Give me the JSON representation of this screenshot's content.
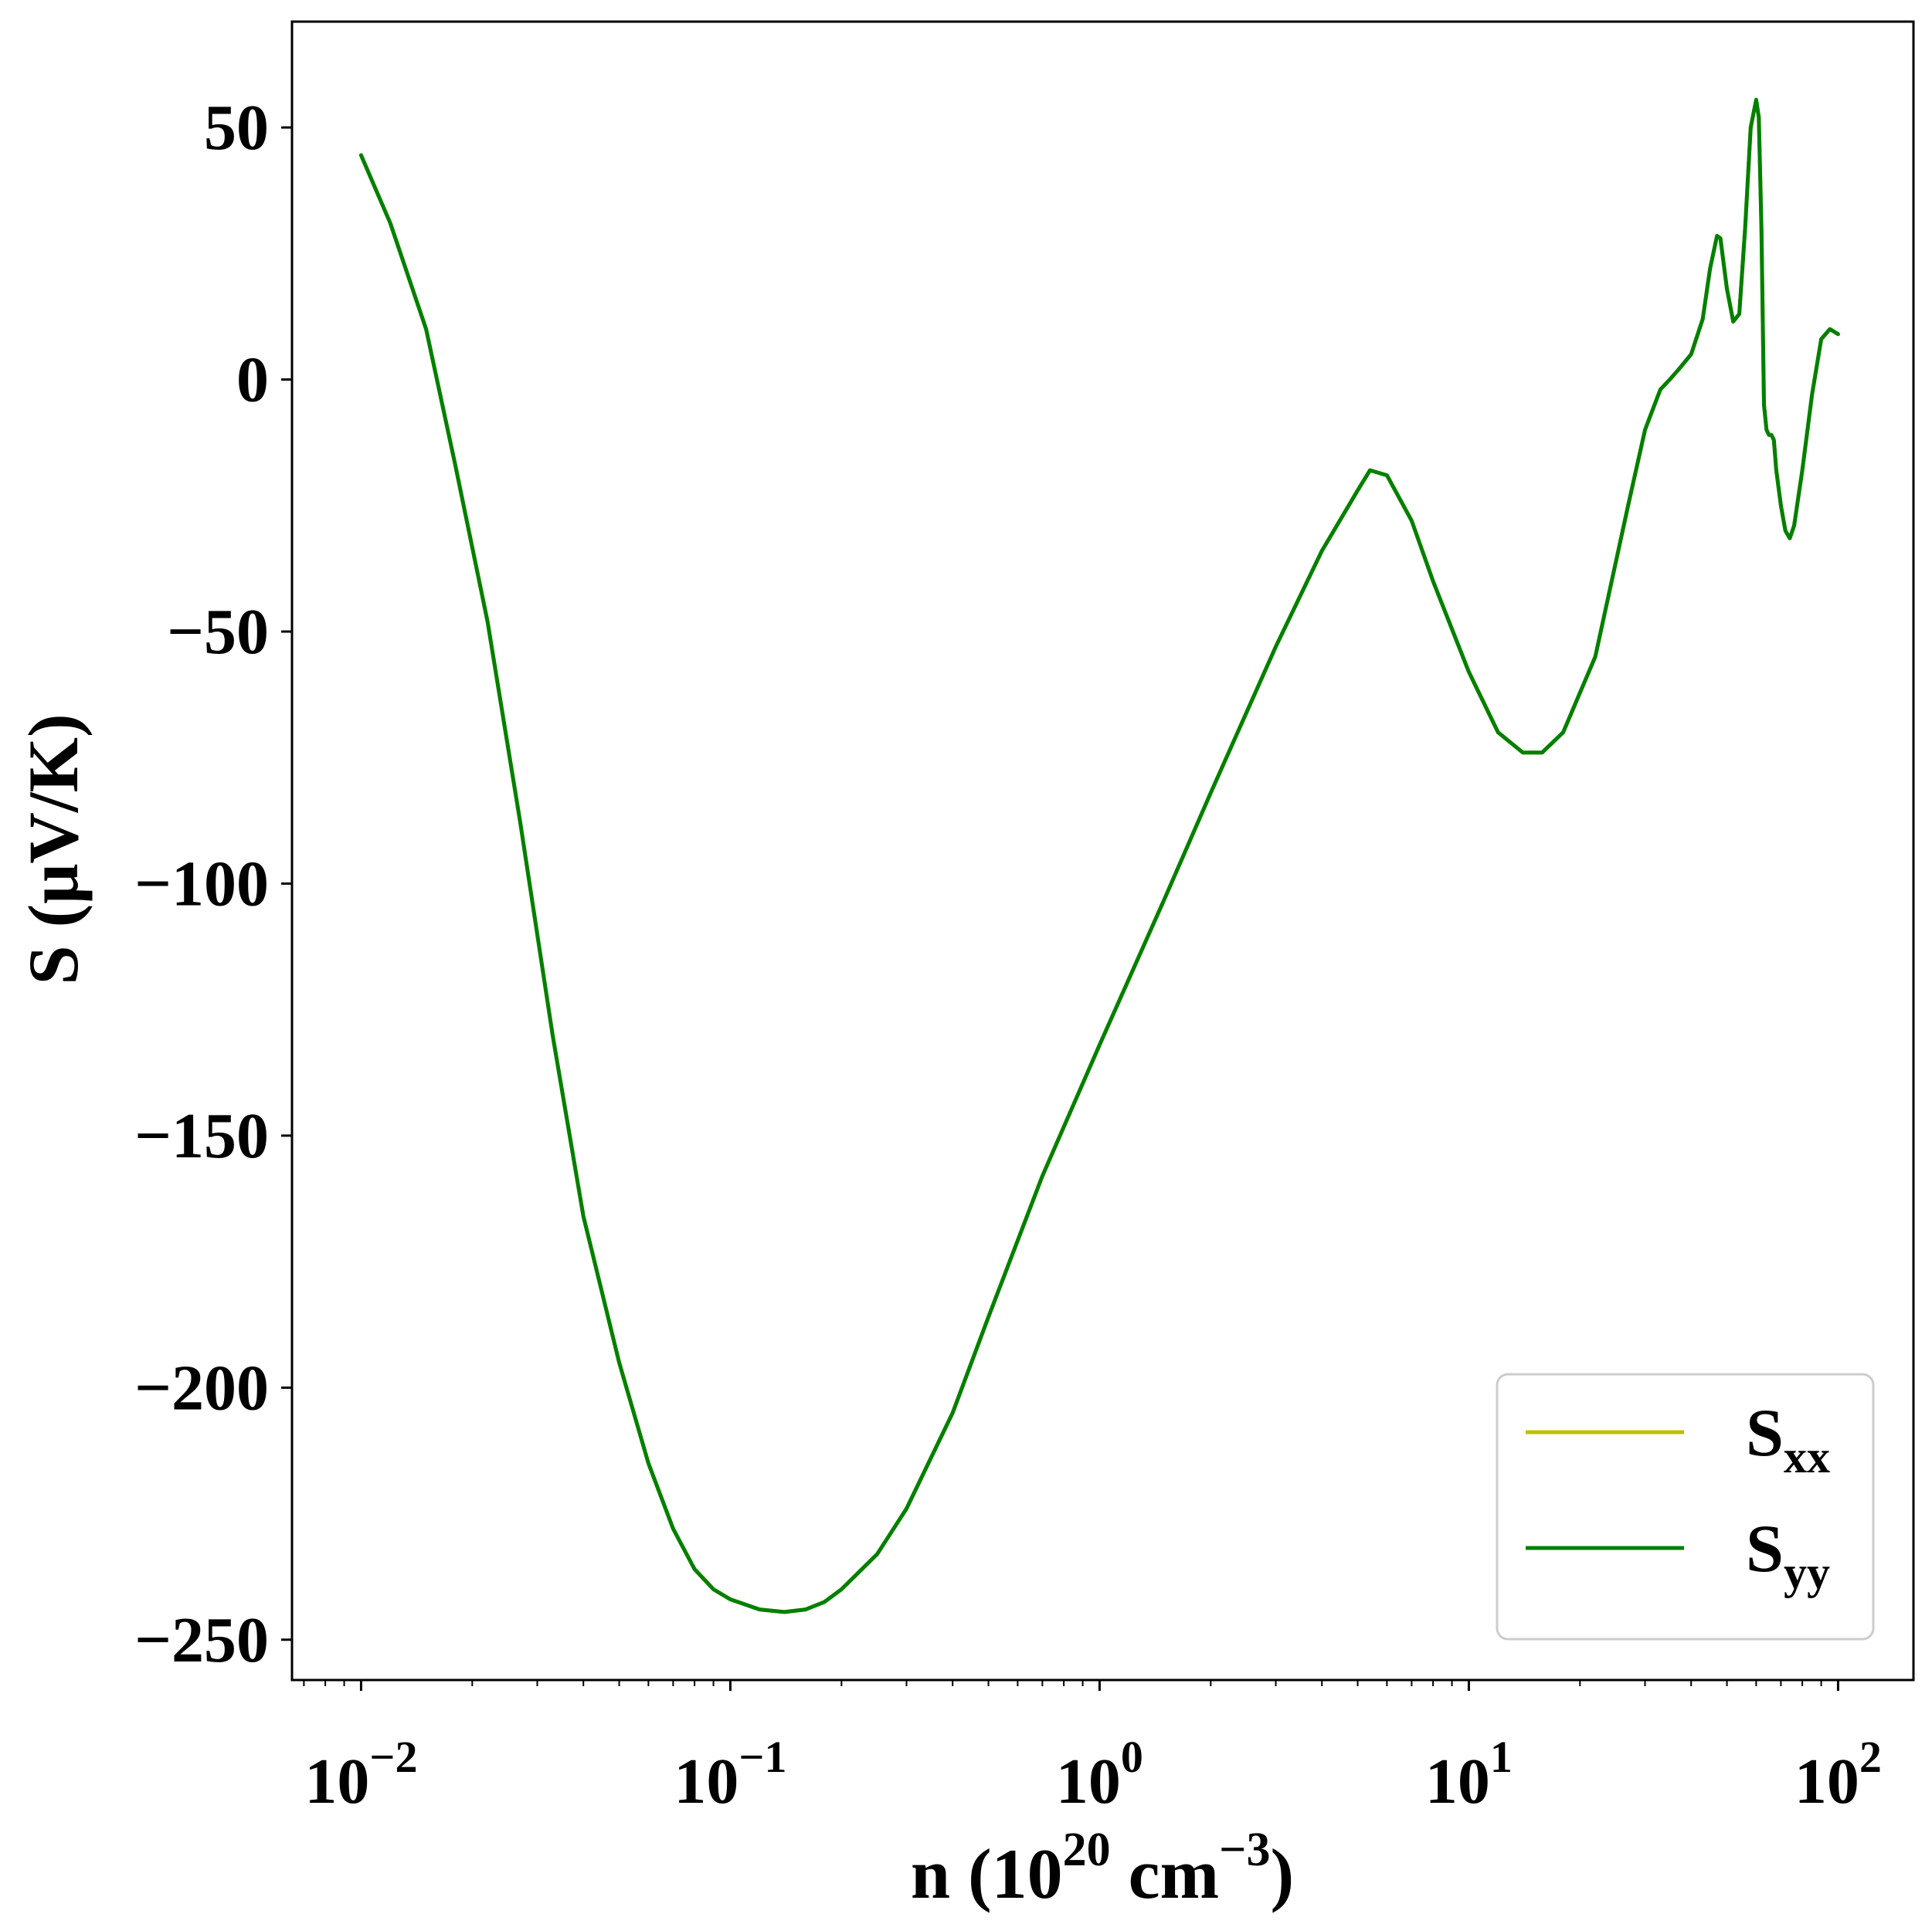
{
  "chart_data": {
    "type": "line",
    "xscale": "log",
    "xlim": [
      0.0065,
      160
    ],
    "ylim": [
      -258,
      71
    ],
    "xlabel": {
      "pre": "n (10",
      "sup1": "20",
      "mid": " cm",
      "sup2": "−3",
      "post": ")"
    },
    "ylabel": "S (μV/K)",
    "xticks": [
      {
        "value": 0.01,
        "base": "10",
        "exp": "−2"
      },
      {
        "value": 0.1,
        "base": "10",
        "exp": "−1"
      },
      {
        "value": 1,
        "base": "10",
        "exp": "0"
      },
      {
        "value": 10,
        "base": "10",
        "exp": "1"
      },
      {
        "value": 100,
        "base": "10",
        "exp": "2"
      }
    ],
    "yticks": [
      {
        "value": 50,
        "label": "50"
      },
      {
        "value": 0,
        "label": "0"
      },
      {
        "value": -50,
        "label": "−50"
      },
      {
        "value": -100,
        "label": "−100"
      },
      {
        "value": -150,
        "label": "−150"
      },
      {
        "value": -200,
        "label": "−200"
      },
      {
        "value": -250,
        "label": "−250"
      }
    ],
    "grid": false,
    "legend": {
      "position": "lower-right",
      "entries": [
        {
          "base": "S",
          "sub": "xx",
          "color": "#bfbf00"
        },
        {
          "base": "S",
          "sub": "yy",
          "color": "#008000"
        }
      ]
    },
    "series": [
      {
        "name": "Sxx",
        "color": "#bfbf00",
        "x": [
          0.01,
          0.012,
          0.015,
          0.018,
          0.022,
          0.027,
          0.033,
          0.04,
          0.05,
          0.06,
          0.07,
          0.08,
          0.09,
          0.1,
          0.12,
          0.14,
          0.16,
          0.18,
          0.2,
          0.25,
          0.3,
          0.4,
          0.5,
          0.7,
          1.0,
          1.5,
          2.0,
          3.0,
          4.0,
          5.0,
          5.4,
          6.0,
          7.0,
          8.0,
          10.0,
          12.0,
          14.0,
          15.8,
          18.0,
          22.0,
          27.0,
          30.0,
          33.0,
          35.0,
          37.0,
          40.0,
          43.0,
          45.0,
          47.0,
          48.0,
          50.0,
          52.0,
          54.0,
          56.0,
          58.0,
          60.0,
          61.0,
          62.0,
          63.0,
          64.0,
          65.0,
          66.0,
          67.0,
          68.0,
          70.0,
          72.0,
          74.0,
          76.0,
          80.0,
          85.0,
          90.0,
          95.0,
          100.0
        ],
        "y": [
          44.5,
          31,
          10,
          -17,
          -48,
          -88,
          -130,
          -166,
          -195,
          -215,
          -228,
          -236,
          -240,
          -242,
          -244,
          -244.5,
          -244,
          -242.5,
          -240,
          -233,
          -224,
          -205,
          -186,
          -158,
          -132,
          -103,
          -82,
          -53,
          -34,
          -22,
          -18,
          -19,
          -28,
          -40,
          -58,
          -70,
          -74,
          -74,
          -70,
          -55,
          -25,
          -10,
          -2,
          0,
          2,
          5,
          12,
          22,
          28.5,
          28,
          18,
          11.5,
          13,
          30,
          50,
          55.5,
          52,
          30,
          -5,
          -10,
          -11,
          -11,
          -12,
          -18,
          -25,
          -30,
          -31.5,
          -29,
          -18,
          -3,
          8,
          10,
          9
        ]
      },
      {
        "name": "Syy",
        "color": "#008000",
        "x": [
          0.01,
          0.012,
          0.015,
          0.018,
          0.022,
          0.027,
          0.033,
          0.04,
          0.05,
          0.06,
          0.07,
          0.08,
          0.09,
          0.1,
          0.12,
          0.14,
          0.16,
          0.18,
          0.2,
          0.25,
          0.3,
          0.4,
          0.5,
          0.7,
          1.0,
          1.5,
          2.0,
          3.0,
          4.0,
          5.0,
          5.4,
          6.0,
          7.0,
          8.0,
          10.0,
          12.0,
          14.0,
          15.8,
          18.0,
          22.0,
          27.0,
          30.0,
          33.0,
          35.0,
          37.0,
          40.0,
          43.0,
          45.0,
          47.0,
          48.0,
          50.0,
          52.0,
          54.0,
          56.0,
          58.0,
          60.0,
          61.0,
          62.0,
          63.0,
          64.0,
          65.0,
          66.0,
          67.0,
          68.0,
          70.0,
          72.0,
          74.0,
          76.0,
          80.0,
          85.0,
          90.0,
          95.0,
          100.0
        ],
        "y": [
          44.5,
          31,
          10,
          -17,
          -48,
          -88,
          -130,
          -166,
          -195,
          -215,
          -228,
          -236,
          -240,
          -242,
          -244,
          -244.5,
          -244,
          -242.5,
          -240,
          -233,
          -224,
          -205,
          -186,
          -158,
          -132,
          -103,
          -82,
          -53,
          -34,
          -22,
          -18,
          -19,
          -28,
          -40,
          -58,
          -70,
          -74,
          -74,
          -70,
          -55,
          -25,
          -10,
          -2,
          0,
          2,
          5,
          12,
          22,
          28.5,
          28,
          18,
          11.5,
          13,
          30,
          50,
          55.5,
          52,
          30,
          -5,
          -10,
          -11,
          -11,
          -12,
          -18,
          -25,
          -30,
          -31.5,
          -29,
          -18,
          -3,
          8,
          10,
          9
        ]
      }
    ]
  }
}
